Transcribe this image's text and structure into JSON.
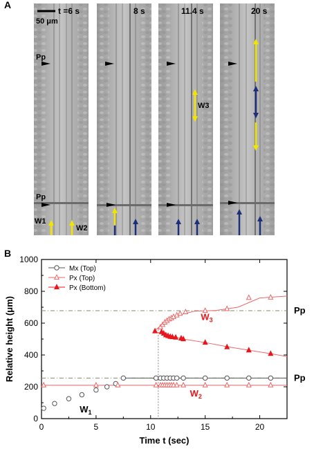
{
  "panel_a": {
    "letter": "A",
    "scale_bar": "50 μm",
    "frames": [
      {
        "time_label": "t =6 s",
        "marker_top": "Pp",
        "marker_bottom": "Pp",
        "wave_labels": [
          "W1",
          "W2"
        ]
      },
      {
        "time_label": "8 s"
      },
      {
        "time_label": "11.4 s",
        "wave_labels": [
          "W3"
        ]
      },
      {
        "time_label": "20 s"
      }
    ],
    "arrow_colors": {
      "yellow": "#f2e600",
      "blue": "#1e2f7a"
    }
  },
  "panel_b": {
    "letter": "B",
    "annotations": {
      "pp_upper": "Pp",
      "pp_lower": "Pp",
      "w1": "W1",
      "w2": "W2",
      "w3": "W3"
    }
  },
  "chart_data": {
    "type": "scatter",
    "xlabel": "Time t (sec)",
    "ylabel": "Relative height (μm)",
    "xlim": [
      0,
      22.5
    ],
    "ylim": [
      0,
      1000
    ],
    "xticks": [
      0,
      5,
      10,
      15,
      20
    ],
    "yticks": [
      0,
      200,
      400,
      600,
      800,
      1000
    ],
    "legend_position": "top-left",
    "reference_lines": {
      "pp_upper": 678,
      "pp_lower": 255,
      "vertical_x": 10.7
    },
    "series": [
      {
        "name": "Mx (Top)",
        "color": "#555555",
        "marker": "open-circle",
        "x": [
          0.2,
          1.2,
          2.5,
          3.7,
          5.0,
          6.0,
          6.8,
          7.5,
          10.5,
          10.9,
          11.2,
          11.5,
          11.8,
          12.1,
          12.4,
          13.0,
          15.0,
          17.0,
          19.0,
          21.0
        ],
        "y": [
          65,
          95,
          125,
          150,
          180,
          200,
          220,
          255,
          255,
          255,
          255,
          255,
          255,
          255,
          255,
          255,
          255,
          255,
          255,
          255
        ]
      },
      {
        "name": "Px (Top)",
        "color": "#ee6666",
        "marker": "open-triangle",
        "x": [
          10.9,
          11.1,
          11.3,
          11.5,
          11.7,
          11.9,
          12.1,
          12.4,
          12.7,
          13.2,
          15.0,
          17.0,
          19.0,
          21.0
        ],
        "y": [
          575,
          590,
          605,
          615,
          625,
          632,
          640,
          650,
          660,
          670,
          678,
          690,
          760,
          762
        ]
      },
      {
        "name": "Px (Bottom)",
        "color": "#e8161d",
        "marker": "filled-triangle",
        "x": [
          10.4,
          11.0,
          11.2,
          11.4,
          11.6,
          11.8,
          12.0,
          12.3,
          12.8,
          13.0,
          15.0,
          17.0,
          19.0,
          21.0
        ],
        "y": [
          550,
          545,
          535,
          525,
          520,
          515,
          513,
          510,
          505,
          500,
          478,
          450,
          430,
          408
        ]
      },
      {
        "name": "",
        "color": "#ee6666",
        "marker": "open-triangle",
        "x": [
          0.2,
          5.0,
          7.0,
          10.5,
          10.9,
          11.1,
          11.3,
          11.5,
          11.7,
          11.9,
          12.1,
          12.4,
          13.0,
          15.0,
          17.0,
          19.0,
          21.0
        ],
        "y": [
          210,
          210,
          210,
          210,
          210,
          210,
          210,
          210,
          210,
          210,
          210,
          210,
          210,
          210,
          210,
          210,
          210
        ]
      }
    ],
    "fit_lines": [
      {
        "color": "#ee6666",
        "x": [
          0,
          22.5
        ],
        "y": [
          210,
          210
        ]
      },
      {
        "color": "#555555",
        "x": [
          7.5,
          22.5
        ],
        "y": [
          255,
          255
        ]
      },
      {
        "color": "#ee6666",
        "x": [
          10.5,
          12,
          14,
          16,
          18,
          20,
          22.5
        ],
        "y": [
          560,
          640,
          675,
          680,
          700,
          758,
          770
        ]
      },
      {
        "color": "#ee6666",
        "x": [
          10.5,
          13,
          15,
          17,
          19,
          21,
          22.5
        ],
        "y": [
          545,
          500,
          478,
          452,
          430,
          408,
          390
        ]
      }
    ]
  }
}
